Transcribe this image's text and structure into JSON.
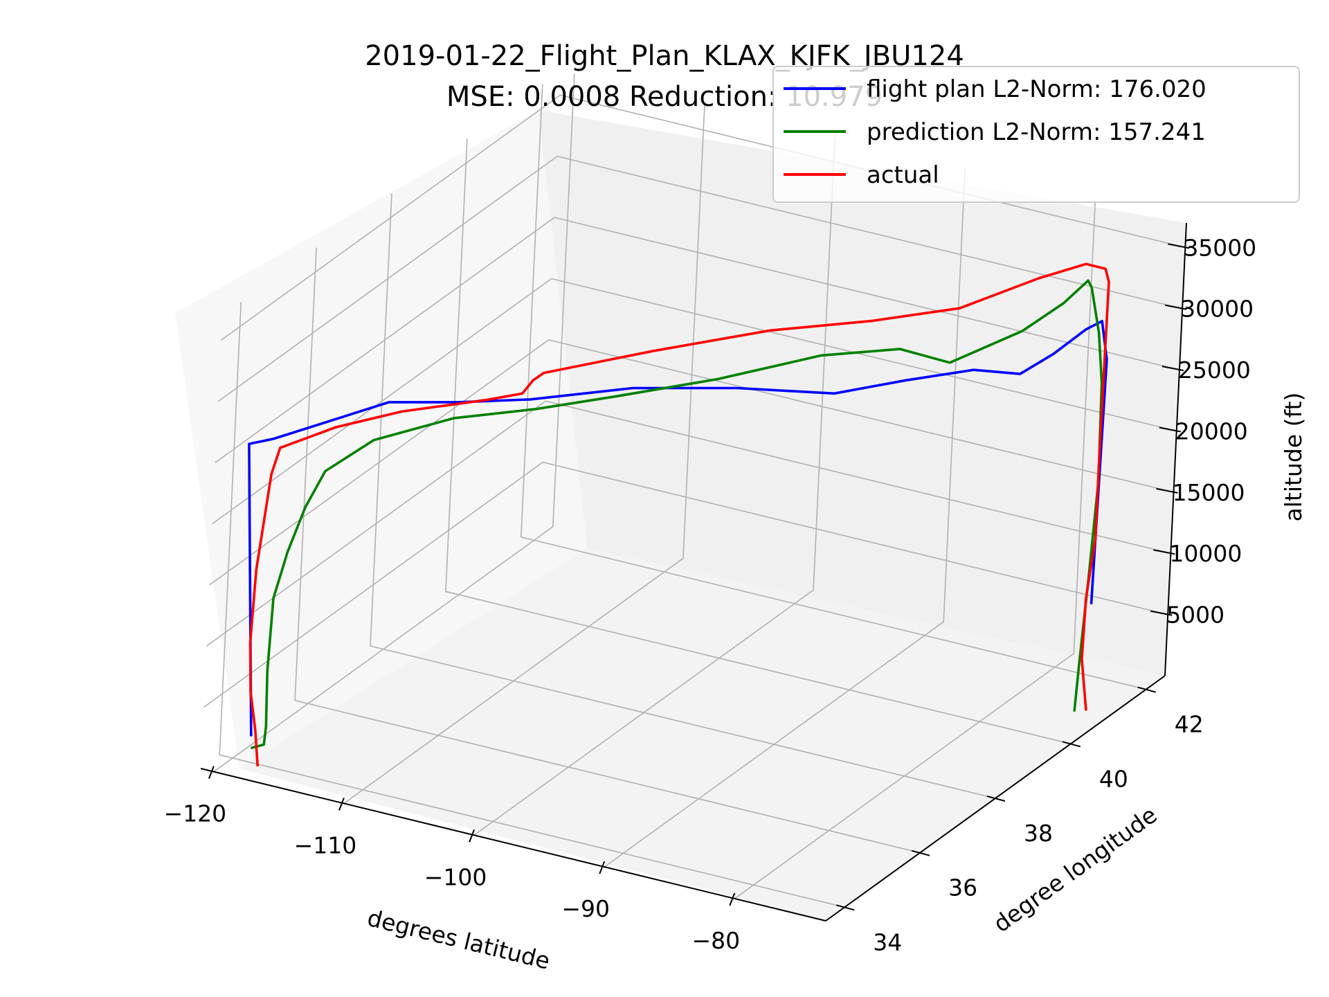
{
  "chart_data": {
    "type": "line",
    "projection": "3d",
    "title": "2019-01-22_Flight_Plan_KLAX_KJFK_JBU124",
    "subtitle": "MSE: 0.0008   Reduction: 10.979",
    "xlabel": "degrees latitude",
    "ylabel": "degree longitude",
    "zlabel": "altitude (ft)",
    "xlim": [
      -121,
      -73
    ],
    "ylim": [
      33.5,
      42.5
    ],
    "zlim": [
      0,
      37000
    ],
    "x_ticks": [
      -120,
      -110,
      -100,
      -90,
      -80
    ],
    "y_ticks": [
      34,
      36,
      38,
      40,
      42
    ],
    "z_ticks": [
      5000,
      10000,
      15000,
      20000,
      25000,
      30000,
      35000
    ],
    "x_tick_labels": [
      "−120",
      "−110",
      "−100",
      "−90",
      "−80"
    ],
    "y_tick_labels": [
      "34",
      "36",
      "38",
      "40",
      "42"
    ],
    "z_tick_labels": [
      "5000",
      "10000",
      "15000",
      "20000",
      "25000",
      "30000",
      "35000"
    ],
    "grid": true,
    "legend_position": "top-right",
    "series": [
      {
        "name": "flight plan L2-Norm: 176.020",
        "color": "#0000ff",
        "points": [
          [
            -118.4,
            33.9,
            2500
          ],
          [
            -119.6,
            33.9,
            26000
          ],
          [
            -118.6,
            34.2,
            26000
          ],
          [
            -113.0,
            35.3,
            28000
          ],
          [
            -110.0,
            36.1,
            27000
          ],
          [
            -107.0,
            37.0,
            26000
          ],
          [
            -102.0,
            38.0,
            26000
          ],
          [
            -96.0,
            38.7,
            26000
          ],
          [
            -90.0,
            39.2,
            26000
          ],
          [
            -86.0,
            39.7,
            27000
          ],
          [
            -82.0,
            40.1,
            28000
          ],
          [
            -79.0,
            40.3,
            28000
          ],
          [
            -76.8,
            40.4,
            30000
          ],
          [
            -75.0,
            40.6,
            32000
          ],
          [
            -73.8,
            40.6,
            33000
          ],
          [
            -73.3,
            40.6,
            30000
          ],
          [
            -73.6,
            40.6,
            10000
          ]
        ]
      },
      {
        "name": "prediction L2-Norm: 157.241",
        "color": "#008000",
        "points": [
          [
            -118.3,
            33.9,
            1500
          ],
          [
            -117.4,
            33.9,
            2000
          ],
          [
            -117.3,
            33.9,
            3500
          ],
          [
            -117.4,
            33.9,
            8000
          ],
          [
            -117.2,
            33.9,
            14000
          ],
          [
            -116.3,
            33.9,
            18000
          ],
          [
            -115.1,
            33.9,
            22000
          ],
          [
            -114.0,
            34.0,
            25000
          ],
          [
            -111.8,
            34.5,
            27000
          ],
          [
            -108.0,
            35.3,
            28000
          ],
          [
            -104.0,
            36.1,
            28000
          ],
          [
            -100.0,
            36.8,
            28500
          ],
          [
            -95.0,
            37.8,
            29000
          ],
          [
            -90.0,
            38.8,
            30000
          ],
          [
            -86.0,
            39.5,
            30000
          ],
          [
            -83.0,
            39.8,
            29000
          ],
          [
            -79.0,
            40.3,
            31500
          ],
          [
            -76.5,
            40.5,
            34000
          ],
          [
            -75.0,
            40.6,
            36000
          ],
          [
            -74.7,
            40.6,
            35500
          ],
          [
            -74.0,
            40.6,
            32000
          ],
          [
            -73.6,
            40.6,
            28000
          ],
          [
            -73.5,
            40.6,
            20000
          ],
          [
            -73.9,
            40.6,
            12000
          ],
          [
            -74.3,
            40.6,
            5000
          ],
          [
            -74.5,
            40.6,
            1000
          ]
        ]
      },
      {
        "name": "actual",
        "color": "#ff0000",
        "points": [
          [
            -117.8,
            33.9,
            200
          ],
          [
            -118.1,
            33.9,
            3000
          ],
          [
            -118.6,
            33.9,
            6000
          ],
          [
            -118.8,
            33.9,
            10000
          ],
          [
            -118.6,
            33.9,
            16000
          ],
          [
            -118.2,
            33.9,
            20000
          ],
          [
            -117.8,
            33.9,
            24000
          ],
          [
            -117.5,
            34.0,
            26000
          ],
          [
            -115.0,
            34.6,
            27000
          ],
          [
            -112.0,
            35.3,
            27500
          ],
          [
            -108.0,
            36.2,
            27500
          ],
          [
            -106.5,
            36.6,
            27500
          ],
          [
            -106.0,
            36.7,
            28500
          ],
          [
            -105.5,
            36.8,
            29000
          ],
          [
            -100.0,
            37.8,
            30000
          ],
          [
            -94.0,
            38.8,
            31000
          ],
          [
            -88.0,
            39.4,
            32000
          ],
          [
            -83.0,
            40.0,
            33000
          ],
          [
            -78.5,
            40.5,
            35500
          ],
          [
            -75.5,
            40.7,
            37000
          ],
          [
            -74.0,
            40.7,
            37000
          ],
          [
            -73.7,
            40.7,
            36000
          ],
          [
            -73.8,
            40.7,
            22000
          ],
          [
            -73.8,
            40.7,
            15000
          ],
          [
            -74.3,
            40.7,
            10000
          ],
          [
            -74.4,
            40.7,
            5000
          ],
          [
            -73.9,
            40.7,
            1000
          ]
        ]
      }
    ]
  }
}
